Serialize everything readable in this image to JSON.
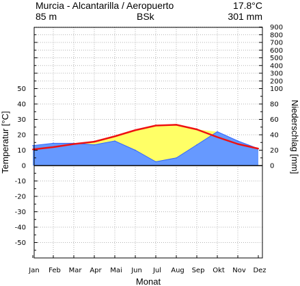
{
  "header": {
    "station": "Murcia - Alcantarilla / Aeropuerto",
    "altitude": "85 m",
    "climate_class": "BSk",
    "mean_temperature": "17.8°C",
    "annual_precipitation": "301 mm"
  },
  "chart_data": {
    "type": "climate-diagram",
    "title": "Murcia - Alcantarilla / Aeropuerto",
    "xlabel": "Monat",
    "ylabel_left": "Temperatur [°C]",
    "ylabel_right": "Niederschlag [mm]",
    "categories": [
      "Jan",
      "Feb",
      "Mar",
      "Apr",
      "Mai",
      "Jun",
      "Jul",
      "Aug",
      "Sep",
      "Okt",
      "Nov",
      "Dez"
    ],
    "temperature": {
      "name": "Temperatur",
      "unit": "°C",
      "color": "#ee1111",
      "values": [
        10.5,
        12,
        14,
        15.5,
        19,
        23,
        26,
        26.5,
        23.5,
        18.5,
        14,
        11
      ]
    },
    "precipitation": {
      "name": "Niederschlag",
      "unit": "mm",
      "color": "#3366ff",
      "values": [
        26,
        29,
        29,
        27,
        32,
        20,
        5,
        10,
        27,
        44,
        32,
        22
      ]
    },
    "left_ticks": [
      50,
      40,
      30,
      20,
      10,
      0,
      -10,
      -20,
      -30,
      -40,
      -50
    ],
    "right_ticks": [
      900,
      800,
      700,
      600,
      500,
      400,
      300,
      200,
      100,
      80,
      60,
      40,
      20,
      0
    ],
    "ylim_temperature": [
      -60,
      90
    ],
    "colors": {
      "arid_fill": "#ffff66",
      "precip_fill": "#6699ff",
      "grid": "#b0b0b0"
    }
  }
}
